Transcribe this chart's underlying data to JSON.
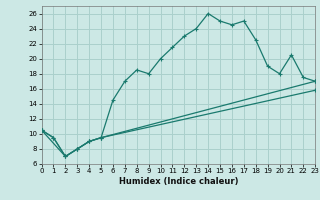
{
  "xlabel": "Humidex (Indice chaleur)",
  "bg_color": "#cce8e5",
  "grid_color": "#aad0cc",
  "line_color": "#1a7a6e",
  "xlim": [
    0,
    23
  ],
  "ylim": [
    6,
    27
  ],
  "xticks": [
    0,
    1,
    2,
    3,
    4,
    5,
    6,
    7,
    8,
    9,
    10,
    11,
    12,
    13,
    14,
    15,
    16,
    17,
    18,
    19,
    20,
    21,
    22,
    23
  ],
  "yticks": [
    6,
    8,
    10,
    12,
    14,
    16,
    18,
    20,
    22,
    24,
    26
  ],
  "line1_x": [
    0,
    1,
    2,
    3,
    4,
    5,
    6,
    7,
    8,
    9,
    10,
    11,
    12,
    13,
    14,
    15,
    16,
    17,
    18,
    19,
    20,
    21,
    22,
    23
  ],
  "line1_y": [
    10.5,
    9.5,
    7.0,
    8.0,
    9.0,
    9.5,
    14.5,
    17.0,
    18.5,
    18.0,
    20.0,
    21.5,
    23.0,
    24.0,
    26.0,
    25.0,
    24.5,
    25.0,
    22.5,
    19.0,
    18.0,
    20.5,
    17.5,
    17.0
  ],
  "line2_x": [
    0,
    1,
    2,
    3,
    4,
    5,
    23
  ],
  "line2_y": [
    10.5,
    9.5,
    7.0,
    8.0,
    9.0,
    9.5,
    17.0
  ],
  "line3_x": [
    0,
    2,
    3,
    4,
    5,
    23
  ],
  "line3_y": [
    10.5,
    7.0,
    8.0,
    9.0,
    9.5,
    15.8
  ]
}
